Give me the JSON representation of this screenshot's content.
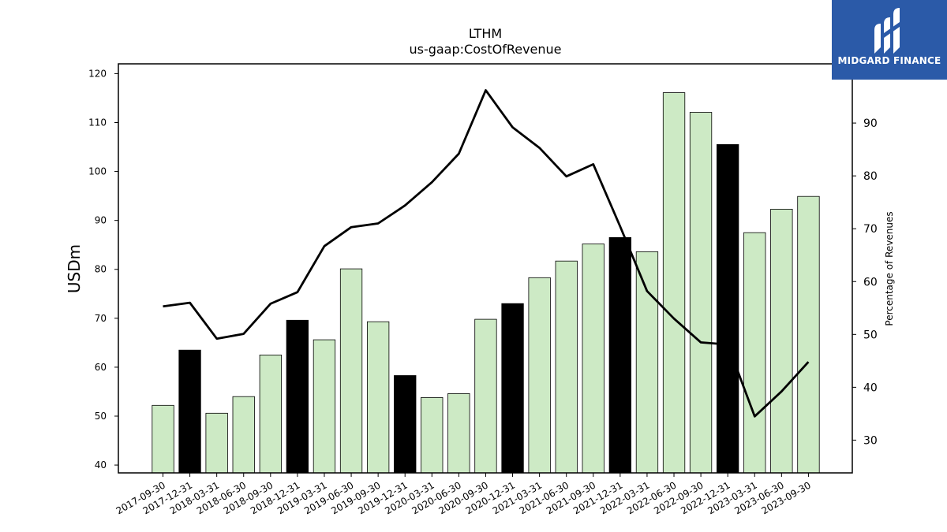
{
  "chart_data": {
    "type": "bar",
    "title": "LTHM",
    "subtitle": "us-gaap:CostOfRevenue",
    "ylabel": "USDm",
    "y2label": "Percentage of Revenues",
    "ylim": [
      38.4,
      122
    ],
    "y2lim": [
      23.8,
      101.2
    ],
    "yticks": [
      40,
      50,
      60,
      70,
      80,
      90,
      100,
      110,
      120
    ],
    "y2ticks": [
      30,
      40,
      50,
      60,
      70,
      80,
      90
    ],
    "categories": [
      "2017-09-30",
      "2017-12-31",
      "2018-03-31",
      "2018-06-30",
      "2018-09-30",
      "2018-12-31",
      "2019-03-31",
      "2019-06-30",
      "2019-09-30",
      "2019-12-31",
      "2020-03-31",
      "2020-06-30",
      "2020-09-30",
      "2020-12-31",
      "2021-03-31",
      "2021-06-30",
      "2021-09-30",
      "2021-12-31",
      "2022-03-31",
      "2022-06-30",
      "2022-09-30",
      "2022-12-31",
      "2023-03-31",
      "2023-06-30",
      "2023-09-30"
    ],
    "series": [
      {
        "type": "bar",
        "values": [
          52.2,
          63.5,
          50.6,
          54.0,
          62.5,
          69.6,
          65.6,
          80.1,
          69.3,
          58.3,
          53.8,
          54.6,
          69.8,
          73.0,
          78.3,
          81.7,
          85.2,
          86.5,
          83.6,
          116.1,
          112.1,
          105.5,
          87.5,
          92.3,
          94.9
        ],
        "highlight": [
          false,
          true,
          false,
          false,
          false,
          true,
          false,
          false,
          false,
          true,
          false,
          false,
          false,
          true,
          false,
          false,
          false,
          true,
          false,
          false,
          false,
          true,
          false,
          false,
          false
        ]
      },
      {
        "type": "line",
        "axis": "right",
        "values": [
          55.3,
          56.0,
          49.2,
          50.1,
          55.8,
          58.0,
          66.7,
          70.3,
          71.0,
          74.4,
          78.8,
          84.2,
          96.2,
          89.2,
          85.3,
          79.9,
          82.2,
          70.4,
          58.2,
          53.0,
          48.5,
          48.1,
          34.5,
          39.2,
          44.8
        ]
      }
    ],
    "colors": {
      "bar": "#cdeac5",
      "highlight": "#000000",
      "line": "#000000"
    }
  },
  "logo": {
    "name": "MIDGARD FINANCE",
    "bg": "#2b5aa8"
  }
}
